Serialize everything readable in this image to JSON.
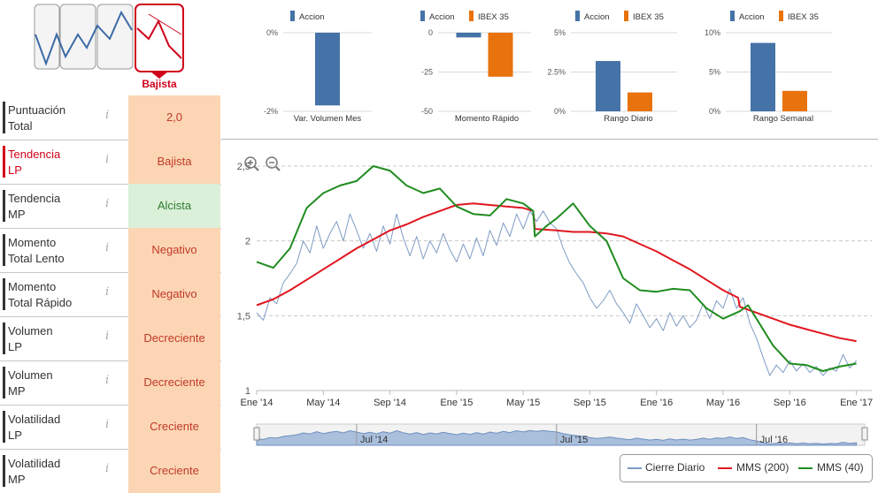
{
  "trend": {
    "selected_label": "Bajista"
  },
  "metrics": [
    {
      "label_l1": "Puntuación",
      "label_l2": "Total",
      "value": "2,0",
      "bg": "#fcd6b4",
      "color": "#c0392b"
    },
    {
      "label_l1": "Tendencia",
      "label_l2": "LP",
      "value": "Bajista",
      "bg": "#fcd6b4",
      "color": "#c0392b",
      "selected": true
    },
    {
      "label_l1": "Tendencia",
      "label_l2": "MP",
      "value": "Alcista",
      "bg": "#dbf0d8",
      "color": "#2e7d32"
    },
    {
      "label_l1": "Momento",
      "label_l2": "Total Lento",
      "value": "Negativo",
      "bg": "#fcd6b4",
      "color": "#c0392b"
    },
    {
      "label_l1": "Momento",
      "label_l2": "Total Rápido",
      "value": "Negativo",
      "bg": "#fcd6b4",
      "color": "#c0392b"
    },
    {
      "label_l1": "Volumen",
      "label_l2": "LP",
      "value": "Decreciente",
      "bg": "#fcd6b4",
      "color": "#c0392b"
    },
    {
      "label_l1": "Volumen",
      "label_l2": "MP",
      "value": "Decreciente",
      "bg": "#fcd6b4",
      "color": "#c0392b"
    },
    {
      "label_l1": "Volatilidad",
      "label_l2": "LP",
      "value": "Creciente",
      "bg": "#fcd6b4",
      "color": "#c0392b"
    },
    {
      "label_l1": "Volatilidad",
      "label_l2": "MP",
      "value": "Creciente",
      "bg": "#fcd6b4",
      "color": "#c0392b"
    }
  ],
  "colors": {
    "accion": "#4572a7",
    "ibex": "#e8720c",
    "cierre": "#7f9cc4",
    "mms200": "#e0161f",
    "mms40": "#1f8c1f",
    "accent_red": "#d0021b"
  },
  "chart_data": [
    {
      "type": "bar",
      "title": "Var. Volumen Mes",
      "legend": [
        "Accion"
      ],
      "y_ticks": [
        "0%",
        "-2%"
      ],
      "ylim": [
        -2,
        0
      ],
      "series": [
        {
          "name": "Accion",
          "values": [
            -1.85
          ]
        }
      ]
    },
    {
      "type": "bar",
      "title": "Momento Rápido",
      "legend": [
        "Accion",
        "IBEX 35"
      ],
      "y_ticks": [
        "0",
        "-25",
        "-50"
      ],
      "ylim": [
        -50,
        0
      ],
      "series": [
        {
          "name": "Accion",
          "values": [
            -3
          ]
        },
        {
          "name": "IBEX 35",
          "values": [
            -28
          ]
        }
      ]
    },
    {
      "type": "bar",
      "title": "Rango Diario",
      "legend": [
        "Accion",
        "IBEX 35"
      ],
      "y_ticks": [
        "5%",
        "2.5%",
        "0%"
      ],
      "ylim": [
        0,
        5
      ],
      "series": [
        {
          "name": "Accion",
          "values": [
            3.2
          ]
        },
        {
          "name": "IBEX 35",
          "values": [
            1.2
          ]
        }
      ]
    },
    {
      "type": "bar",
      "title": "Rango Semanal",
      "legend": [
        "Accion",
        "IBEX 35"
      ],
      "y_ticks": [
        "10%",
        "5%",
        "0%"
      ],
      "ylim": [
        0,
        10
      ],
      "series": [
        {
          "name": "Accion",
          "values": [
            8.7
          ]
        },
        {
          "name": "IBEX 35",
          "values": [
            2.6
          ]
        }
      ]
    },
    {
      "type": "line",
      "title": "",
      "y_ticks": [
        "2,5",
        "2",
        "1,5",
        "1"
      ],
      "ylim": [
        1,
        2.5
      ],
      "x_ticks": [
        "Ene '14",
        "May '14",
        "Sep '14",
        "Ene '15",
        "May '15",
        "Sep '15",
        "Ene '16",
        "May '16",
        "Sep '16",
        "Ene '17"
      ],
      "x_range_months": [
        0,
        36.5
      ],
      "navigator_labels": [
        "Jul '14",
        "Jul '15",
        "Jul '16"
      ],
      "legend": [
        "Cierre Diario",
        "MMS (200)",
        "MMS (40)"
      ],
      "series": [
        {
          "name": "Cierre Diario",
          "points": [
            [
              0,
              1.52
            ],
            [
              0.4,
              1.47
            ],
            [
              0.8,
              1.62
            ],
            [
              1.2,
              1.58
            ],
            [
              1.6,
              1.72
            ],
            [
              2,
              1.78
            ],
            [
              2.4,
              1.85
            ],
            [
              2.8,
              2.0
            ],
            [
              3.2,
              1.92
            ],
            [
              3.6,
              2.1
            ],
            [
              4,
              1.95
            ],
            [
              4.4,
              2.05
            ],
            [
              4.8,
              2.13
            ],
            [
              5.2,
              2.0
            ],
            [
              5.6,
              2.18
            ],
            [
              6,
              2.07
            ],
            [
              6.4,
              1.95
            ],
            [
              6.8,
              2.05
            ],
            [
              7.2,
              1.93
            ],
            [
              7.6,
              2.1
            ],
            [
              8,
              1.98
            ],
            [
              8.4,
              2.18
            ],
            [
              8.8,
              2.02
            ],
            [
              9.2,
              1.9
            ],
            [
              9.6,
              2.03
            ],
            [
              10,
              1.88
            ],
            [
              10.4,
              2.0
            ],
            [
              10.8,
              1.92
            ],
            [
              11.2,
              2.05
            ],
            [
              11.6,
              1.94
            ],
            [
              12,
              1.86
            ],
            [
              12.4,
              1.98
            ],
            [
              12.8,
              1.88
            ],
            [
              13.2,
              2.02
            ],
            [
              13.6,
              1.9
            ],
            [
              14,
              2.07
            ],
            [
              14.4,
              1.97
            ],
            [
              14.8,
              2.12
            ],
            [
              15.2,
              2.03
            ],
            [
              15.6,
              2.18
            ],
            [
              16,
              2.08
            ],
            [
              16.4,
              2.2
            ],
            [
              16.8,
              2.13
            ],
            [
              17.2,
              2.2
            ],
            [
              17.6,
              2.12
            ],
            [
              18,
              2.08
            ],
            [
              18.4,
              1.95
            ],
            [
              18.8,
              1.85
            ],
            [
              19.2,
              1.78
            ],
            [
              19.6,
              1.72
            ],
            [
              20,
              1.62
            ],
            [
              20.4,
              1.55
            ],
            [
              20.8,
              1.6
            ],
            [
              21.2,
              1.67
            ],
            [
              21.6,
              1.58
            ],
            [
              22,
              1.52
            ],
            [
              22.4,
              1.45
            ],
            [
              22.8,
              1.58
            ],
            [
              23.2,
              1.5
            ],
            [
              23.6,
              1.42
            ],
            [
              24,
              1.48
            ],
            [
              24.4,
              1.4
            ],
            [
              24.8,
              1.52
            ],
            [
              25.2,
              1.43
            ],
            [
              25.6,
              1.5
            ],
            [
              26,
              1.42
            ],
            [
              26.4,
              1.47
            ],
            [
              26.8,
              1.58
            ],
            [
              27.2,
              1.48
            ],
            [
              27.6,
              1.6
            ],
            [
              28,
              1.55
            ],
            [
              28.4,
              1.68
            ],
            [
              28.8,
              1.55
            ],
            [
              29.2,
              1.62
            ],
            [
              29.6,
              1.45
            ],
            [
              30,
              1.35
            ],
            [
              30.4,
              1.22
            ],
            [
              30.8,
              1.1
            ],
            [
              31.2,
              1.17
            ],
            [
              31.6,
              1.12
            ],
            [
              32,
              1.2
            ],
            [
              32.4,
              1.13
            ],
            [
              32.8,
              1.18
            ],
            [
              33.2,
              1.12
            ],
            [
              33.6,
              1.16
            ],
            [
              34,
              1.1
            ],
            [
              34.4,
              1.15
            ],
            [
              34.8,
              1.13
            ],
            [
              35.2,
              1.24
            ],
            [
              35.6,
              1.15
            ],
            [
              36,
              1.2
            ]
          ]
        },
        {
          "name": "MMS (200)",
          "points": [
            [
              0,
              1.57
            ],
            [
              1,
              1.61
            ],
            [
              2,
              1.67
            ],
            [
              3,
              1.74
            ],
            [
              4,
              1.81
            ],
            [
              5,
              1.88
            ],
            [
              6,
              1.95
            ],
            [
              7,
              2.01
            ],
            [
              8,
              2.07
            ],
            [
              9,
              2.11
            ],
            [
              10,
              2.16
            ],
            [
              11,
              2.2
            ],
            [
              12,
              2.24
            ],
            [
              13,
              2.25
            ],
            [
              14,
              2.24
            ],
            [
              15,
              2.23
            ],
            [
              16,
              2.22
            ],
            [
              16.6,
              2.2
            ],
            [
              16.7,
              2.08
            ],
            [
              18,
              2.07
            ],
            [
              19,
              2.06
            ],
            [
              20,
              2.06
            ],
            [
              21,
              2.05
            ],
            [
              22,
              2.03
            ],
            [
              23,
              1.98
            ],
            [
              24,
              1.93
            ],
            [
              25,
              1.87
            ],
            [
              26,
              1.81
            ],
            [
              27,
              1.74
            ],
            [
              28,
              1.67
            ],
            [
              28.9,
              1.62
            ],
            [
              29,
              1.56
            ],
            [
              30,
              1.52
            ],
            [
              31,
              1.48
            ],
            [
              32,
              1.44
            ],
            [
              33,
              1.41
            ],
            [
              34,
              1.38
            ],
            [
              35,
              1.35
            ],
            [
              36,
              1.33
            ]
          ]
        },
        {
          "name": "MMS (40)",
          "points": [
            [
              0,
              1.86
            ],
            [
              1,
              1.82
            ],
            [
              2,
              1.95
            ],
            [
              3,
              2.22
            ],
            [
              4,
              2.32
            ],
            [
              5,
              2.37
            ],
            [
              6,
              2.4
            ],
            [
              7,
              2.5
            ],
            [
              8,
              2.47
            ],
            [
              9,
              2.37
            ],
            [
              10,
              2.32
            ],
            [
              11,
              2.35
            ],
            [
              12,
              2.23
            ],
            [
              13,
              2.18
            ],
            [
              14,
              2.17
            ],
            [
              15,
              2.28
            ],
            [
              16,
              2.25
            ],
            [
              16.6,
              2.2
            ],
            [
              16.7,
              2.03
            ],
            [
              17.4,
              2.1
            ],
            [
              18,
              2.15
            ],
            [
              19,
              2.25
            ],
            [
              20,
              2.1
            ],
            [
              21,
              2.0
            ],
            [
              22,
              1.75
            ],
            [
              23,
              1.67
            ],
            [
              24,
              1.66
            ],
            [
              25,
              1.68
            ],
            [
              26,
              1.67
            ],
            [
              27,
              1.55
            ],
            [
              28,
              1.48
            ],
            [
              29,
              1.53
            ],
            [
              29.5,
              1.57
            ],
            [
              30,
              1.48
            ],
            [
              31,
              1.3
            ],
            [
              32,
              1.18
            ],
            [
              33,
              1.17
            ],
            [
              34,
              1.13
            ],
            [
              35,
              1.16
            ],
            [
              36,
              1.18
            ]
          ]
        }
      ]
    }
  ]
}
